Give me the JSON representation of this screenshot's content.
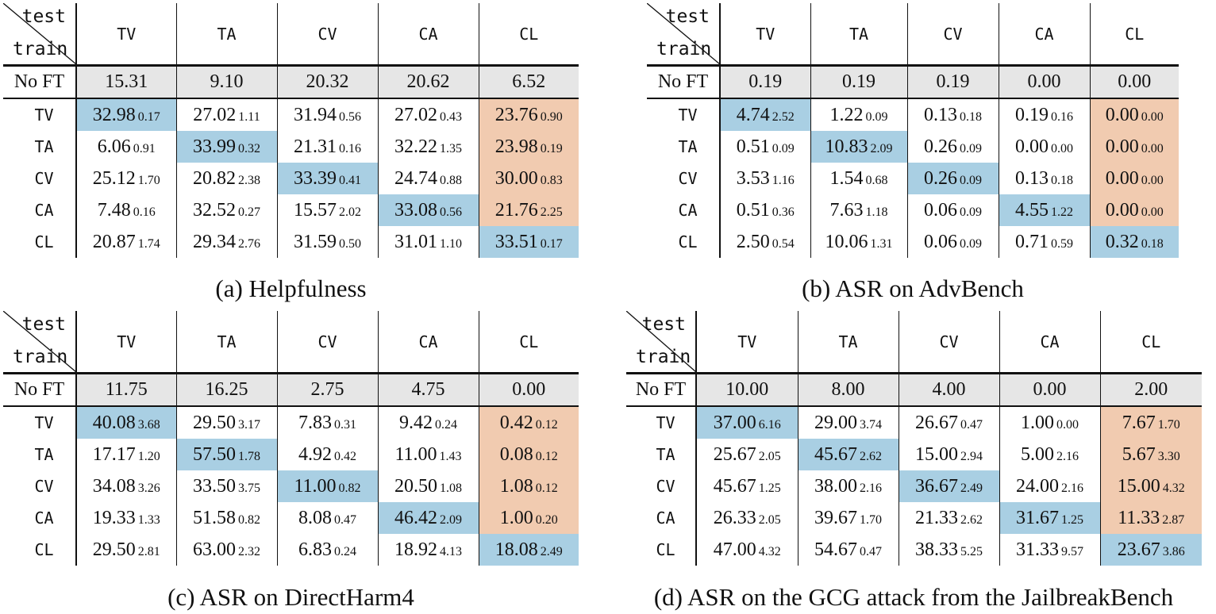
{
  "corner": {
    "test_label": "test",
    "train_label": "train"
  },
  "columns": [
    "TV",
    "TA",
    "CV",
    "CA",
    "CL"
  ],
  "panels": [
    {
      "caption": "(a) Helpfulness",
      "no_ft_label": "No FT",
      "no_ft": [
        "15.31",
        "9.10",
        "20.32",
        "20.62",
        "6.52"
      ],
      "rows": [
        {
          "label": "TV",
          "cells": [
            {
              "v": "32.98",
              "s": "0.17"
            },
            {
              "v": "27.02",
              "s": "1.11"
            },
            {
              "v": "31.94",
              "s": "0.56"
            },
            {
              "v": "27.02",
              "s": "0.43"
            },
            {
              "v": "23.76",
              "s": "0.90"
            }
          ]
        },
        {
          "label": "TA",
          "cells": [
            {
              "v": "6.06",
              "s": "0.91"
            },
            {
              "v": "33.99",
              "s": "0.32"
            },
            {
              "v": "21.31",
              "s": "0.16"
            },
            {
              "v": "32.22",
              "s": "1.35"
            },
            {
              "v": "23.98",
              "s": "0.19"
            }
          ]
        },
        {
          "label": "CV",
          "cells": [
            {
              "v": "25.12",
              "s": "1.70"
            },
            {
              "v": "20.82",
              "s": "2.38"
            },
            {
              "v": "33.39",
              "s": "0.41"
            },
            {
              "v": "24.74",
              "s": "0.88"
            },
            {
              "v": "30.00",
              "s": "0.83"
            }
          ]
        },
        {
          "label": "CA",
          "cells": [
            {
              "v": "7.48",
              "s": "0.16"
            },
            {
              "v": "32.52",
              "s": "0.27"
            },
            {
              "v": "15.57",
              "s": "2.02"
            },
            {
              "v": "33.08",
              "s": "0.56"
            },
            {
              "v": "21.76",
              "s": "2.25"
            }
          ]
        },
        {
          "label": "CL",
          "cells": [
            {
              "v": "20.87",
              "s": "1.74"
            },
            {
              "v": "29.34",
              "s": "2.76"
            },
            {
              "v": "31.59",
              "s": "0.50"
            },
            {
              "v": "31.01",
              "s": "1.10"
            },
            {
              "v": "33.51",
              "s": "0.17"
            }
          ]
        }
      ]
    },
    {
      "caption": "(b) ASR on AdvBench",
      "no_ft_label": "No FT",
      "no_ft": [
        "0.19",
        "0.19",
        "0.19",
        "0.00",
        "0.00"
      ],
      "rows": [
        {
          "label": "TV",
          "cells": [
            {
              "v": "4.74",
              "s": "2.52"
            },
            {
              "v": "1.22",
              "s": "0.09"
            },
            {
              "v": "0.13",
              "s": "0.18"
            },
            {
              "v": "0.19",
              "s": "0.16"
            },
            {
              "v": "0.00",
              "s": "0.00"
            }
          ]
        },
        {
          "label": "TA",
          "cells": [
            {
              "v": "0.51",
              "s": "0.09"
            },
            {
              "v": "10.83",
              "s": "2.09"
            },
            {
              "v": "0.26",
              "s": "0.09"
            },
            {
              "v": "0.00",
              "s": "0.00"
            },
            {
              "v": "0.00",
              "s": "0.00"
            }
          ]
        },
        {
          "label": "CV",
          "cells": [
            {
              "v": "3.53",
              "s": "1.16"
            },
            {
              "v": "1.54",
              "s": "0.68"
            },
            {
              "v": "0.26",
              "s": "0.09"
            },
            {
              "v": "0.13",
              "s": "0.18"
            },
            {
              "v": "0.00",
              "s": "0.00"
            }
          ]
        },
        {
          "label": "CA",
          "cells": [
            {
              "v": "0.51",
              "s": "0.36"
            },
            {
              "v": "7.63",
              "s": "1.18"
            },
            {
              "v": "0.06",
              "s": "0.09"
            },
            {
              "v": "4.55",
              "s": "1.22"
            },
            {
              "v": "0.00",
              "s": "0.00"
            }
          ]
        },
        {
          "label": "CL",
          "cells": [
            {
              "v": "2.50",
              "s": "0.54"
            },
            {
              "v": "10.06",
              "s": "1.31"
            },
            {
              "v": "0.06",
              "s": "0.09"
            },
            {
              "v": "0.71",
              "s": "0.59"
            },
            {
              "v": "0.32",
              "s": "0.18"
            }
          ]
        }
      ]
    },
    {
      "caption": "(c) ASR on DirectHarm4",
      "no_ft_label": "No FT",
      "no_ft": [
        "11.75",
        "16.25",
        "2.75",
        "4.75",
        "0.00"
      ],
      "rows": [
        {
          "label": "TV",
          "cells": [
            {
              "v": "40.08",
              "s": "3.68"
            },
            {
              "v": "29.50",
              "s": "3.17"
            },
            {
              "v": "7.83",
              "s": "0.31"
            },
            {
              "v": "9.42",
              "s": "0.24"
            },
            {
              "v": "0.42",
              "s": "0.12"
            }
          ]
        },
        {
          "label": "TA",
          "cells": [
            {
              "v": "17.17",
              "s": "1.20"
            },
            {
              "v": "57.50",
              "s": "1.78"
            },
            {
              "v": "4.92",
              "s": "0.42"
            },
            {
              "v": "11.00",
              "s": "1.43"
            },
            {
              "v": "0.08",
              "s": "0.12"
            }
          ]
        },
        {
          "label": "CV",
          "cells": [
            {
              "v": "34.08",
              "s": "3.26"
            },
            {
              "v": "33.50",
              "s": "3.75"
            },
            {
              "v": "11.00",
              "s": "0.82"
            },
            {
              "v": "20.50",
              "s": "1.08"
            },
            {
              "v": "1.08",
              "s": "0.12"
            }
          ]
        },
        {
          "label": "CA",
          "cells": [
            {
              "v": "19.33",
              "s": "1.33"
            },
            {
              "v": "51.58",
              "s": "0.82"
            },
            {
              "v": "8.08",
              "s": "0.47"
            },
            {
              "v": "46.42",
              "s": "2.09"
            },
            {
              "v": "1.00",
              "s": "0.20"
            }
          ]
        },
        {
          "label": "CL",
          "cells": [
            {
              "v": "29.50",
              "s": "2.81"
            },
            {
              "v": "63.00",
              "s": "2.32"
            },
            {
              "v": "6.83",
              "s": "0.24"
            },
            {
              "v": "18.92",
              "s": "4.13"
            },
            {
              "v": "18.08",
              "s": "2.49"
            }
          ]
        }
      ]
    },
    {
      "caption": "(d) ASR on the GCG attack from the JailbreakBench",
      "no_ft_label": "No FT",
      "no_ft": [
        "10.00",
        "8.00",
        "4.00",
        "0.00",
        "2.00"
      ],
      "rows": [
        {
          "label": "TV",
          "cells": [
            {
              "v": "37.00",
              "s": "6.16"
            },
            {
              "v": "29.00",
              "s": "3.74"
            },
            {
              "v": "26.67",
              "s": "0.47"
            },
            {
              "v": "1.00",
              "s": "0.00"
            },
            {
              "v": "7.67",
              "s": "1.70"
            }
          ]
        },
        {
          "label": "TA",
          "cells": [
            {
              "v": "25.67",
              "s": "2.05"
            },
            {
              "v": "45.67",
              "s": "2.62"
            },
            {
              "v": "15.00",
              "s": "2.94"
            },
            {
              "v": "5.00",
              "s": "2.16"
            },
            {
              "v": "5.67",
              "s": "3.30"
            }
          ]
        },
        {
          "label": "CV",
          "cells": [
            {
              "v": "45.67",
              "s": "1.25"
            },
            {
              "v": "38.00",
              "s": "2.16"
            },
            {
              "v": "36.67",
              "s": "2.49"
            },
            {
              "v": "24.00",
              "s": "2.16"
            },
            {
              "v": "15.00",
              "s": "4.32"
            }
          ]
        },
        {
          "label": "CA",
          "cells": [
            {
              "v": "26.33",
              "s": "2.05"
            },
            {
              "v": "39.67",
              "s": "1.70"
            },
            {
              "v": "21.33",
              "s": "2.62"
            },
            {
              "v": "31.67",
              "s": "1.25"
            },
            {
              "v": "11.33",
              "s": "2.87"
            }
          ]
        },
        {
          "label": "CL",
          "cells": [
            {
              "v": "47.00",
              "s": "4.32"
            },
            {
              "v": "54.67",
              "s": "0.47"
            },
            {
              "v": "38.33",
              "s": "5.25"
            },
            {
              "v": "31.33",
              "s": "9.57"
            },
            {
              "v": "23.67",
              "s": "3.86"
            }
          ]
        }
      ]
    }
  ],
  "highlight_colors": {
    "diagonal": "#a9cfe3",
    "cl_column": "#f1cbb0"
  }
}
